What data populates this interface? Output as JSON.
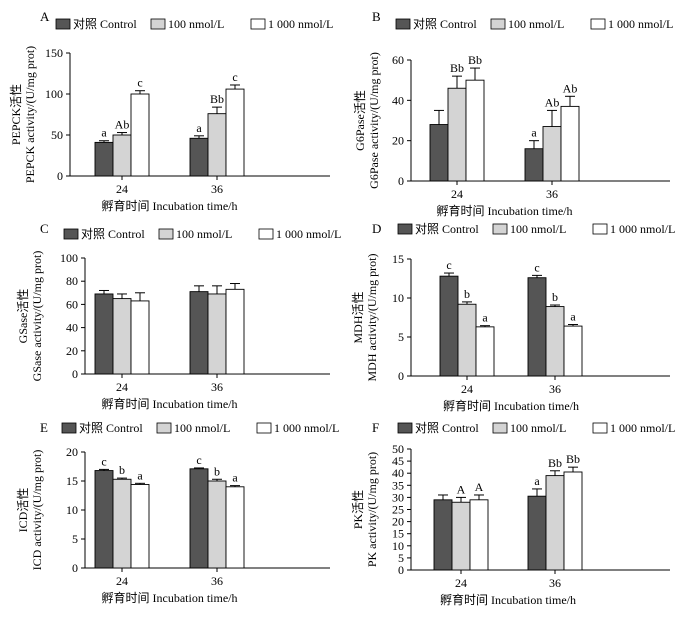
{
  "legend": {
    "control": "对照  Control",
    "low": "100 nmol/L",
    "high": "1 000 nmol/L"
  },
  "series_colors": {
    "control": "#555555",
    "low": "#d4d4d4",
    "high": "#ffffff"
  },
  "xlabel": "孵育时间  Incubation time/h",
  "chart_data": [
    {
      "panel": "A",
      "type": "bar",
      "ylabel_cn": "PEPCK活性",
      "ylabel_en": "PEPCK activity/(U/mg prot)",
      "ylim": [
        0,
        150
      ],
      "yticks": [
        0,
        50,
        100,
        150
      ],
      "categories": [
        "24",
        "36"
      ],
      "series": [
        {
          "name": "对照  Control",
          "values": [
            41,
            46
          ],
          "errors": [
            2,
            3
          ],
          "letters": [
            "a",
            "a"
          ]
        },
        {
          "name": "100 nmol/L",
          "values": [
            50,
            76
          ],
          "errors": [
            3,
            8
          ],
          "letters": [
            "Ab",
            "Bb"
          ]
        },
        {
          "name": "1 000 nmol/L",
          "values": [
            100,
            106
          ],
          "errors": [
            4,
            5
          ],
          "letters": [
            "c",
            "c"
          ]
        }
      ]
    },
    {
      "panel": "B",
      "type": "bar",
      "ylabel_cn": "G6Pase活性",
      "ylabel_en": "G6Pase activity/(U/mg prot)",
      "ylim": [
        0,
        60
      ],
      "yticks": [
        0,
        20,
        40,
        60
      ],
      "categories": [
        "24",
        "36"
      ],
      "series": [
        {
          "name": "对照  Control",
          "values": [
            28,
            16
          ],
          "errors": [
            7,
            4
          ],
          "letters": [
            "",
            "a"
          ]
        },
        {
          "name": "100 nmol/L",
          "values": [
            46,
            27
          ],
          "errors": [
            6,
            8
          ],
          "letters": [
            "Bb",
            "Ab"
          ]
        },
        {
          "name": "1 000 nmol/L",
          "values": [
            50,
            37
          ],
          "errors": [
            6,
            5
          ],
          "letters": [
            "Bb",
            "Ab"
          ]
        }
      ]
    },
    {
      "panel": "C",
      "type": "bar",
      "ylabel_cn": "GSase活性",
      "ylabel_en": "GSase activity/(U/mg prot)",
      "ylim": [
        0,
        100
      ],
      "yticks": [
        0,
        20,
        40,
        60,
        80,
        100
      ],
      "categories": [
        "24",
        "36"
      ],
      "series": [
        {
          "name": "对照  Control",
          "values": [
            69,
            71
          ],
          "errors": [
            3,
            5
          ],
          "letters": [
            "",
            ""
          ]
        },
        {
          "name": "100 nmol/L",
          "values": [
            65,
            69
          ],
          "errors": [
            4,
            7
          ],
          "letters": [
            "",
            ""
          ]
        },
        {
          "name": "1 000 nmol/L",
          "values": [
            63,
            73
          ],
          "errors": [
            7,
            5
          ],
          "letters": [
            "",
            ""
          ]
        }
      ]
    },
    {
      "panel": "D",
      "type": "bar",
      "ylabel_cn": "MDH活性",
      "ylabel_en": "MDH activity/(U/mg prot)",
      "ylim": [
        0,
        15
      ],
      "yticks": [
        0,
        5,
        10,
        15
      ],
      "categories": [
        "24",
        "36"
      ],
      "series": [
        {
          "name": "对照  Control",
          "values": [
            12.8,
            12.6
          ],
          "errors": [
            0.4,
            0.3
          ],
          "letters": [
            "c",
            "c"
          ]
        },
        {
          "name": "100 nmol/L",
          "values": [
            9.2,
            8.9
          ],
          "errors": [
            0.3,
            0.2
          ],
          "letters": [
            "b",
            "b"
          ]
        },
        {
          "name": "1 000 nmol/L",
          "values": [
            6.3,
            6.4
          ],
          "errors": [
            0.15,
            0.2
          ],
          "letters": [
            "a",
            "a"
          ]
        }
      ]
    },
    {
      "panel": "E",
      "type": "bar",
      "ylabel_cn": "ICD活性",
      "ylabel_en": "ICD activity/(U/mg prot)",
      "ylim": [
        0,
        20
      ],
      "yticks": [
        0,
        5,
        10,
        15,
        20
      ],
      "categories": [
        "24",
        "36"
      ],
      "series": [
        {
          "name": "对照  Control",
          "values": [
            16.8,
            17.1
          ],
          "errors": [
            0.2,
            0.15
          ],
          "letters": [
            "c",
            "c"
          ]
        },
        {
          "name": "100 nmol/L",
          "values": [
            15.3,
            15.0
          ],
          "errors": [
            0.2,
            0.3
          ],
          "letters": [
            "b",
            "b"
          ]
        },
        {
          "name": "1 000 nmol/L",
          "values": [
            14.4,
            14.0
          ],
          "errors": [
            0.2,
            0.2
          ],
          "letters": [
            "a",
            "a"
          ]
        }
      ]
    },
    {
      "panel": "F",
      "type": "bar",
      "ylabel_cn": "PK活性",
      "ylabel_en": "PK activity/(U/mg prot)",
      "ylim": [
        0,
        50
      ],
      "yticks": [
        0,
        5,
        10,
        15,
        20,
        25,
        30,
        35,
        40,
        45,
        50
      ],
      "categories": [
        "24",
        "36"
      ],
      "series": [
        {
          "name": "对照  Control",
          "values": [
            29,
            30.5
          ],
          "errors": [
            2,
            3
          ],
          "letters": [
            "",
            "a"
          ]
        },
        {
          "name": "100 nmol/L",
          "values": [
            28,
            39
          ],
          "errors": [
            2,
            2
          ],
          "letters": [
            "A",
            "Bb"
          ]
        },
        {
          "name": "1 000 nmol/L",
          "values": [
            29,
            40.5
          ],
          "errors": [
            2,
            2
          ],
          "letters": [
            "A",
            "Bb"
          ]
        }
      ]
    }
  ]
}
